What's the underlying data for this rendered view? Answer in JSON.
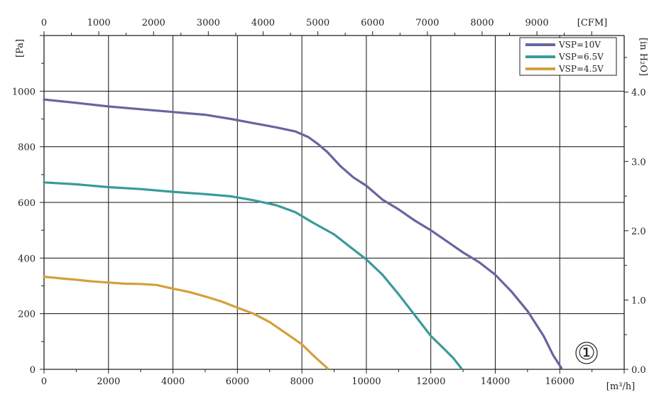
{
  "chart_data": {
    "type": "line",
    "x_bottom": {
      "label": "[m³/h]",
      "ticks": [
        0,
        2000,
        4000,
        6000,
        8000,
        10000,
        12000,
        14000,
        16000
      ],
      "range": [
        0,
        18000
      ]
    },
    "x_top": {
      "label": "[CFM]",
      "ticks": [
        0,
        1000,
        2000,
        3000,
        4000,
        5000,
        6000,
        7000,
        8000,
        9000
      ],
      "range": [
        0,
        10594
      ]
    },
    "y_left": {
      "label": "[Pa]",
      "ticks": [
        0,
        200,
        400,
        600,
        800,
        1000
      ],
      "range": [
        0,
        1200
      ]
    },
    "y_right": {
      "label": "[in H₂O]",
      "ticks": [
        "0.0",
        "1.0",
        "2.0",
        "3.0",
        "4.0"
      ],
      "tick_values": [
        0,
        1,
        2,
        3,
        4
      ],
      "range": [
        0,
        4.817
      ]
    },
    "grid": true,
    "legend_position": "top-right",
    "series": [
      {
        "name": "VSP=10V",
        "color": "#6666a0",
        "x": [
          0,
          1000,
          2000,
          3000,
          4000,
          5000,
          5800,
          6500,
          7200,
          7800,
          8200,
          8500,
          8800,
          9200,
          9600,
          10000,
          10500,
          11000,
          11500,
          12000,
          12500,
          13000,
          13500,
          14000,
          14500,
          15000,
          15500,
          15800,
          16050
        ],
        "y": [
          970,
          958,
          945,
          935,
          925,
          915,
          900,
          885,
          870,
          855,
          835,
          810,
          780,
          730,
          690,
          660,
          610,
          575,
          535,
          500,
          460,
          420,
          385,
          340,
          280,
          210,
          120,
          50,
          5
        ]
      },
      {
        "name": "VSP=6.5V",
        "color": "#3a9a9a",
        "x": [
          0,
          1000,
          2000,
          3000,
          4000,
          5000,
          5800,
          6500,
          7200,
          7800,
          8300,
          9000,
          9500,
          10000,
          10500,
          11000,
          11500,
          12000,
          12400,
          12700,
          12950
        ],
        "y": [
          672,
          665,
          655,
          648,
          638,
          630,
          622,
          608,
          590,
          565,
          530,
          485,
          440,
          395,
          340,
          270,
          195,
          120,
          75,
          40,
          3
        ]
      },
      {
        "name": "VSP=4.5V",
        "color": "#d4a03a",
        "x": [
          0,
          500,
          1000,
          1500,
          2000,
          2500,
          3000,
          3500,
          4000,
          4500,
          5000,
          5500,
          6000,
          6500,
          7000,
          7500,
          8000,
          8400,
          8800
        ],
        "y": [
          333,
          327,
          322,
          316,
          312,
          308,
          307,
          303,
          290,
          278,
          262,
          244,
          222,
          200,
          170,
          130,
          90,
          45,
          3
        ]
      }
    ],
    "annotations": [
      "①"
    ]
  }
}
